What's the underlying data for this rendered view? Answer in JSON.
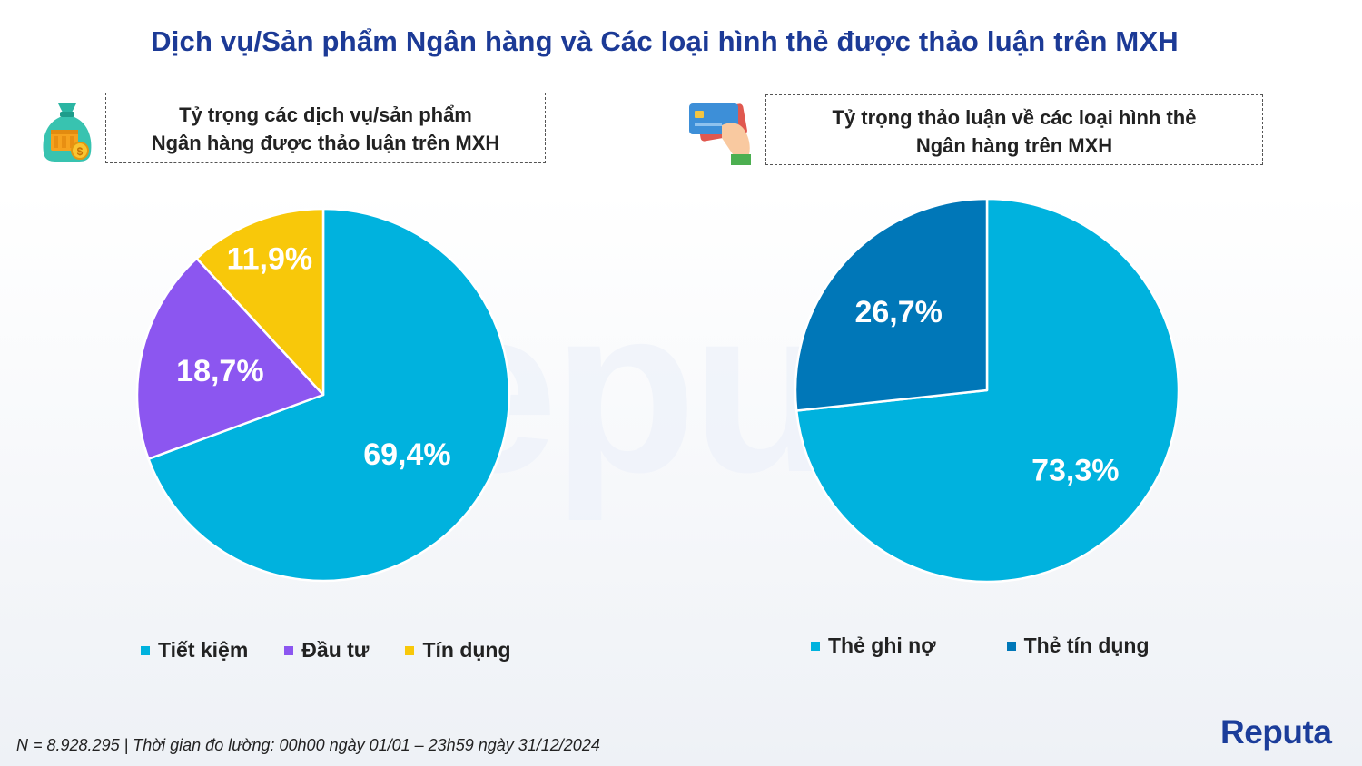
{
  "title": "Dịch vụ/Sản phẩm Ngân hàng và Các loại hình thẻ được thảo luận trên MXH",
  "watermark": "epu",
  "left_panel": {
    "heading_line1": "Tỷ trọng các dịch vụ/sản phẩm",
    "heading_line2": "Ngân hàng được thảo luận trên MXH",
    "icon": "money-bag-icon"
  },
  "right_panel": {
    "heading_line1": "Tỷ trọng thảo luận về các loại hình thẻ",
    "heading_line2": "Ngân hàng trên MXH",
    "icon": "credit-card-hand-icon"
  },
  "chart_data": [
    {
      "type": "pie",
      "title": "",
      "categories": [
        "Tiết kiệm",
        "Đầu tư",
        "Tín dụng"
      ],
      "values": [
        69.4,
        18.7,
        11.9
      ],
      "labels": [
        "69,4%",
        "18,7%",
        "11,9%"
      ],
      "colors": [
        "#00b2de",
        "#8c56f0",
        "#f8c80a"
      ],
      "legend_position": "bottom"
    },
    {
      "type": "pie",
      "title": "",
      "categories": [
        "Thẻ ghi nợ",
        "Thẻ tín dụng"
      ],
      "values": [
        73.3,
        26.7
      ],
      "labels": [
        "73,3%",
        "26,7%"
      ],
      "colors": [
        "#00b2de",
        "#0077b8"
      ],
      "legend_position": "bottom"
    }
  ],
  "footer_note": "N = 8.928.295 | Thời gian đo lường: 00h00 ngày 01/01 – 23h59 ngày 31/12/2024",
  "brand": "Reputa"
}
